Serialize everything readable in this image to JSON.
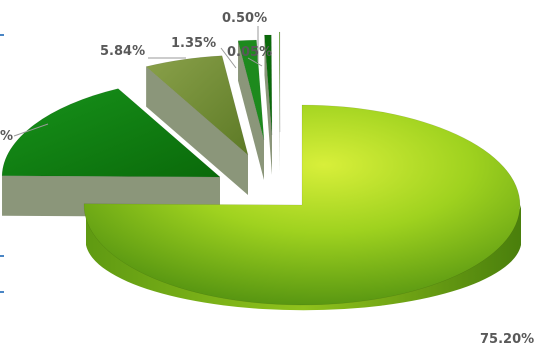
{
  "chart_data": {
    "type": "pie",
    "style": "3d-exploded",
    "series": [
      {
        "values": [
          75.2,
          17.06,
          5.84,
          1.35,
          0.5,
          0.05
        ],
        "data_labels": [
          "75.20%",
          "%",
          "5.84%",
          "1.35%",
          "0.50%",
          "0.05%"
        ],
        "colors": [
          "#8cc21c",
          "#0f7f0f",
          "#6f8a33",
          "#1d8a1d",
          "#0a6a0a",
          "#55a018"
        ]
      }
    ],
    "legend": "none"
  }
}
